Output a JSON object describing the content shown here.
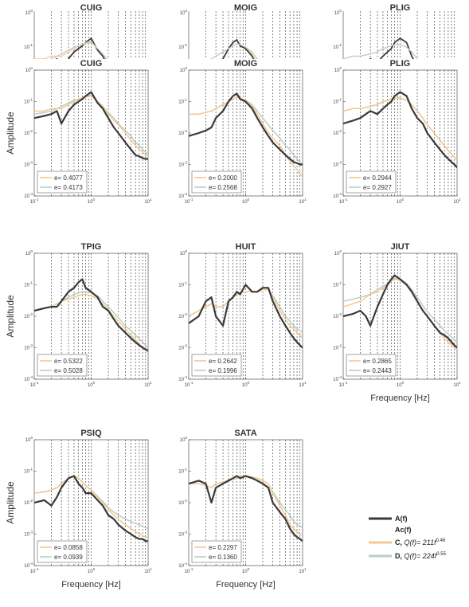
{
  "figure": {
    "ylabel": "Amplitude",
    "xlabel": "Frequency [Hz]",
    "legend": {
      "a": "A(f)",
      "ac": "Ac(f)",
      "c_prefix": "C, ",
      "c_model": "Q(f)= 211f",
      "c_exp": "0.46",
      "d_prefix": "D, ",
      "d_model": "Q(f)= 224f",
      "d_exp": "0.55"
    },
    "colors": {
      "observed": "#3a3a3a",
      "model_c": "#f5c890",
      "model_d": "#b8cfc4",
      "vline": "#333333",
      "axis": "#555555"
    }
  },
  "chart_data": {
    "type": "line",
    "x_scale": "log",
    "y_scale": "log",
    "xlim": [
      0.1,
      10
    ],
    "ylim": [
      0.0001,
      1
    ],
    "x_ticks": [
      0.1,
      1,
      10
    ],
    "x_tick_labels": [
      "10",
      "10",
      "10"
    ],
    "x_tick_exps": [
      "-1",
      "0",
      "1"
    ],
    "y_ticks": [
      0.0001,
      0.001,
      0.01,
      0.1,
      1
    ],
    "y_tick_labels": [
      "10",
      "10",
      "10",
      "10",
      "10"
    ],
    "y_tick_exps": [
      "-4",
      "-3",
      "-2",
      "-1",
      "0"
    ],
    "vlines": [
      0.2,
      0.3,
      0.4,
      0.5,
      0.6,
      0.7,
      0.8,
      0.9,
      1.0,
      2,
      3,
      4,
      5,
      6,
      7,
      8,
      9
    ],
    "x": [
      0.1,
      0.15,
      0.2,
      0.25,
      0.3,
      0.4,
      0.5,
      0.6,
      0.7,
      0.8,
      1.0,
      1.3,
      1.6,
      2.0,
      2.5,
      3.0,
      4.0,
      5.0,
      6.0,
      7.0,
      8.0,
      9.0,
      10.0
    ],
    "panels": [
      {
        "title": "CUIG",
        "errors": [
          "e= 0.4077",
          "e= 0.4173"
        ],
        "series": [
          {
            "values": [
              0.03,
              0.035,
              0.04,
              0.05,
              0.02,
              0.05,
              0.08,
              0.1,
              0.12,
              0.15,
              0.2,
              0.09,
              0.06,
              0.03,
              0.015,
              0.01,
              0.005,
              0.003,
              0.002,
              0.0018,
              0.0016,
              0.0015,
              0.0015
            ]
          },
          {
            "values": [
              0.05,
              0.05,
              0.06,
              0.06,
              0.06,
              0.08,
              0.1,
              0.12,
              0.13,
              0.14,
              0.15,
              0.1,
              0.07,
              0.04,
              0.025,
              0.018,
              0.01,
              0.006,
              0.004,
              0.003,
              0.0025,
              0.002,
              0.0018
            ]
          },
          {
            "values": [
              0.04,
              0.045,
              0.05,
              0.06,
              0.07,
              0.09,
              0.11,
              0.12,
              0.13,
              0.15,
              0.16,
              0.1,
              0.07,
              0.045,
              0.03,
              0.02,
              0.012,
              0.008,
              0.005,
              0.004,
              0.003,
              0.0025,
              0.002
            ]
          }
        ]
      },
      {
        "title": "MOIG",
        "errors": [
          "e= 0.2000",
          "e= 0.2568"
        ],
        "series": [
          {
            "values": [
              0.008,
              0.01,
              0.012,
              0.015,
              0.03,
              0.05,
              0.1,
              0.15,
              0.18,
              0.12,
              0.1,
              0.06,
              0.03,
              0.015,
              0.008,
              0.005,
              0.003,
              0.002,
              0.0015,
              0.0012,
              0.0011,
              0.001,
              0.001
            ]
          },
          {
            "values": [
              0.04,
              0.04,
              0.045,
              0.05,
              0.06,
              0.08,
              0.1,
              0.12,
              0.14,
              0.13,
              0.11,
              0.07,
              0.04,
              0.02,
              0.01,
              0.007,
              0.004,
              0.002,
              0.0013,
              0.0009,
              0.0007,
              0.0005,
              0.0004
            ]
          },
          {
            "values": [
              0.04,
              0.04,
              0.045,
              0.05,
              0.06,
              0.08,
              0.1,
              0.12,
              0.14,
              0.13,
              0.11,
              0.08,
              0.05,
              0.03,
              0.018,
              0.012,
              0.007,
              0.004,
              0.003,
              0.002,
              0.0015,
              0.0012,
              0.001
            ]
          }
        ]
      },
      {
        "title": "PLIG",
        "errors": [
          "e= 0.2944",
          "e= 0.2927"
        ],
        "series": [
          {
            "values": [
              0.02,
              0.025,
              0.03,
              0.04,
              0.05,
              0.04,
              0.06,
              0.08,
              0.1,
              0.15,
              0.2,
              0.15,
              0.06,
              0.03,
              0.02,
              0.01,
              0.005,
              0.003,
              0.002,
              0.0015,
              0.0012,
              0.001,
              0.0008
            ]
          },
          {
            "values": [
              0.05,
              0.06,
              0.06,
              0.065,
              0.07,
              0.08,
              0.1,
              0.11,
              0.12,
              0.13,
              0.13,
              0.11,
              0.08,
              0.05,
              0.03,
              0.018,
              0.01,
              0.006,
              0.004,
              0.0028,
              0.0022,
              0.0017,
              0.0014
            ]
          },
          {
            "values": [
              0.05,
              0.06,
              0.06,
              0.065,
              0.07,
              0.08,
              0.1,
              0.11,
              0.12,
              0.13,
              0.13,
              0.11,
              0.08,
              0.05,
              0.03,
              0.018,
              0.01,
              0.006,
              0.004,
              0.0028,
              0.0022,
              0.0017,
              0.0014
            ]
          }
        ]
      },
      {
        "title": "TPIG",
        "errors": [
          "e= 0.5322",
          "e= 0.5028"
        ],
        "series": [
          {
            "values": [
              0.015,
              0.018,
              0.02,
              0.02,
              0.03,
              0.06,
              0.08,
              0.12,
              0.15,
              0.08,
              0.06,
              0.04,
              0.02,
              0.015,
              0.008,
              0.005,
              0.003,
              0.002,
              0.0015,
              0.0012,
              0.001,
              0.0009,
              0.0008
            ]
          },
          {
            "values": [
              0.015,
              0.018,
              0.02,
              0.025,
              0.03,
              0.035,
              0.04,
              0.045,
              0.05,
              0.05,
              0.045,
              0.035,
              0.025,
              0.016,
              0.01,
              0.007,
              0.004,
              0.0025,
              0.0018,
              0.0013,
              0.001,
              0.0008,
              0.0007
            ]
          },
          {
            "values": [
              0.015,
              0.018,
              0.02,
              0.025,
              0.03,
              0.04,
              0.05,
              0.055,
              0.06,
              0.06,
              0.055,
              0.045,
              0.03,
              0.02,
              0.013,
              0.009,
              0.005,
              0.0035,
              0.0025,
              0.0019,
              0.0015,
              0.0012,
              0.001
            ]
          }
        ]
      },
      {
        "title": "HUIT",
        "errors": [
          "e= 0.2642",
          "e= 0.1996"
        ],
        "series": [
          {
            "values": [
              0.006,
              0.01,
              0.03,
              0.04,
              0.01,
              0.005,
              0.03,
              0.04,
              0.06,
              0.05,
              0.1,
              0.06,
              0.06,
              0.08,
              0.08,
              0.03,
              0.01,
              0.005,
              0.003,
              0.002,
              0.0015,
              0.0012,
              0.001
            ]
          },
          {
            "values": [
              0.01,
              0.015,
              0.02,
              0.025,
              0.02,
              0.02,
              0.03,
              0.04,
              0.05,
              0.055,
              0.06,
              0.06,
              0.06,
              0.07,
              0.07,
              0.04,
              0.015,
              0.008,
              0.005,
              0.004,
              0.003,
              0.0025,
              0.002
            ]
          },
          {
            "values": [
              0.01,
              0.015,
              0.02,
              0.025,
              0.02,
              0.02,
              0.03,
              0.04,
              0.05,
              0.055,
              0.06,
              0.06,
              0.06,
              0.07,
              0.07,
              0.045,
              0.02,
              0.01,
              0.007,
              0.005,
              0.004,
              0.0035,
              0.003
            ]
          }
        ]
      },
      {
        "title": "JIUT",
        "errors": [
          "e= 0.2865",
          "e= 0.2443"
        ],
        "series": [
          {
            "values": [
              0.01,
              0.012,
              0.015,
              0.01,
              0.005,
              0.02,
              0.05,
              0.1,
              0.15,
              0.2,
              0.15,
              0.1,
              0.06,
              0.03,
              0.015,
              0.01,
              0.005,
              0.003,
              0.0025,
              0.002,
              0.0015,
              0.0012,
              0.001
            ]
          },
          {
            "values": [
              0.02,
              0.025,
              0.03,
              0.04,
              0.05,
              0.06,
              0.08,
              0.1,
              0.13,
              0.15,
              0.14,
              0.1,
              0.06,
              0.03,
              0.016,
              0.01,
              0.005,
              0.003,
              0.002,
              0.0015,
              0.0012,
              0.001,
              0.0009
            ]
          },
          {
            "values": [
              0.03,
              0.035,
              0.04,
              0.045,
              0.05,
              0.07,
              0.09,
              0.11,
              0.14,
              0.16,
              0.15,
              0.11,
              0.07,
              0.04,
              0.022,
              0.014,
              0.008,
              0.005,
              0.0035,
              0.0027,
              0.0022,
              0.0018,
              0.0015
            ]
          }
        ]
      },
      {
        "title": "PSIQ",
        "errors": [
          "e= 0.0858",
          "e= 0.0939"
        ],
        "series": [
          {
            "values": [
              0.01,
              0.012,
              0.008,
              0.015,
              0.03,
              0.06,
              0.07,
              0.04,
              0.03,
              0.02,
              0.02,
              0.012,
              0.008,
              0.004,
              0.003,
              0.002,
              0.0013,
              0.001,
              0.0008,
              0.0007,
              0.0007,
              0.0006,
              0.0006
            ]
          },
          {
            "values": [
              0.02,
              0.022,
              0.025,
              0.03,
              0.04,
              0.06,
              0.07,
              0.06,
              0.045,
              0.035,
              0.025,
              0.015,
              0.01,
              0.006,
              0.004,
              0.003,
              0.002,
              0.0015,
              0.0012,
              0.001,
              0.0009,
              0.0008,
              0.0008
            ]
          },
          {
            "values": [
              0.02,
              0.022,
              0.025,
              0.03,
              0.04,
              0.06,
              0.07,
              0.06,
              0.045,
              0.035,
              0.025,
              0.016,
              0.011,
              0.007,
              0.005,
              0.004,
              0.003,
              0.0025,
              0.0022,
              0.002,
              0.0018,
              0.0016,
              0.0015
            ]
          }
        ]
      },
      {
        "title": "SATA",
        "errors": [
          "e= 0.2297",
          "e= 0.1360"
        ],
        "series": [
          {
            "values": [
              0.04,
              0.05,
              0.04,
              0.01,
              0.03,
              0.04,
              0.05,
              0.06,
              0.07,
              0.06,
              0.07,
              0.06,
              0.05,
              0.04,
              0.03,
              0.01,
              0.005,
              0.003,
              0.0015,
              0.001,
              0.0008,
              0.0007,
              0.0006
            ]
          },
          {
            "values": [
              0.04,
              0.04,
              0.035,
              0.03,
              0.04,
              0.045,
              0.05,
              0.055,
              0.06,
              0.065,
              0.07,
              0.065,
              0.06,
              0.05,
              0.04,
              0.02,
              0.008,
              0.004,
              0.002,
              0.0015,
              0.0012,
              0.001,
              0.0009
            ]
          },
          {
            "values": [
              0.04,
              0.04,
              0.035,
              0.03,
              0.04,
              0.045,
              0.05,
              0.055,
              0.06,
              0.065,
              0.07,
              0.065,
              0.06,
              0.05,
              0.04,
              0.022,
              0.01,
              0.006,
              0.004,
              0.0025,
              0.002,
              0.0018,
              0.0016
            ]
          }
        ]
      }
    ]
  }
}
